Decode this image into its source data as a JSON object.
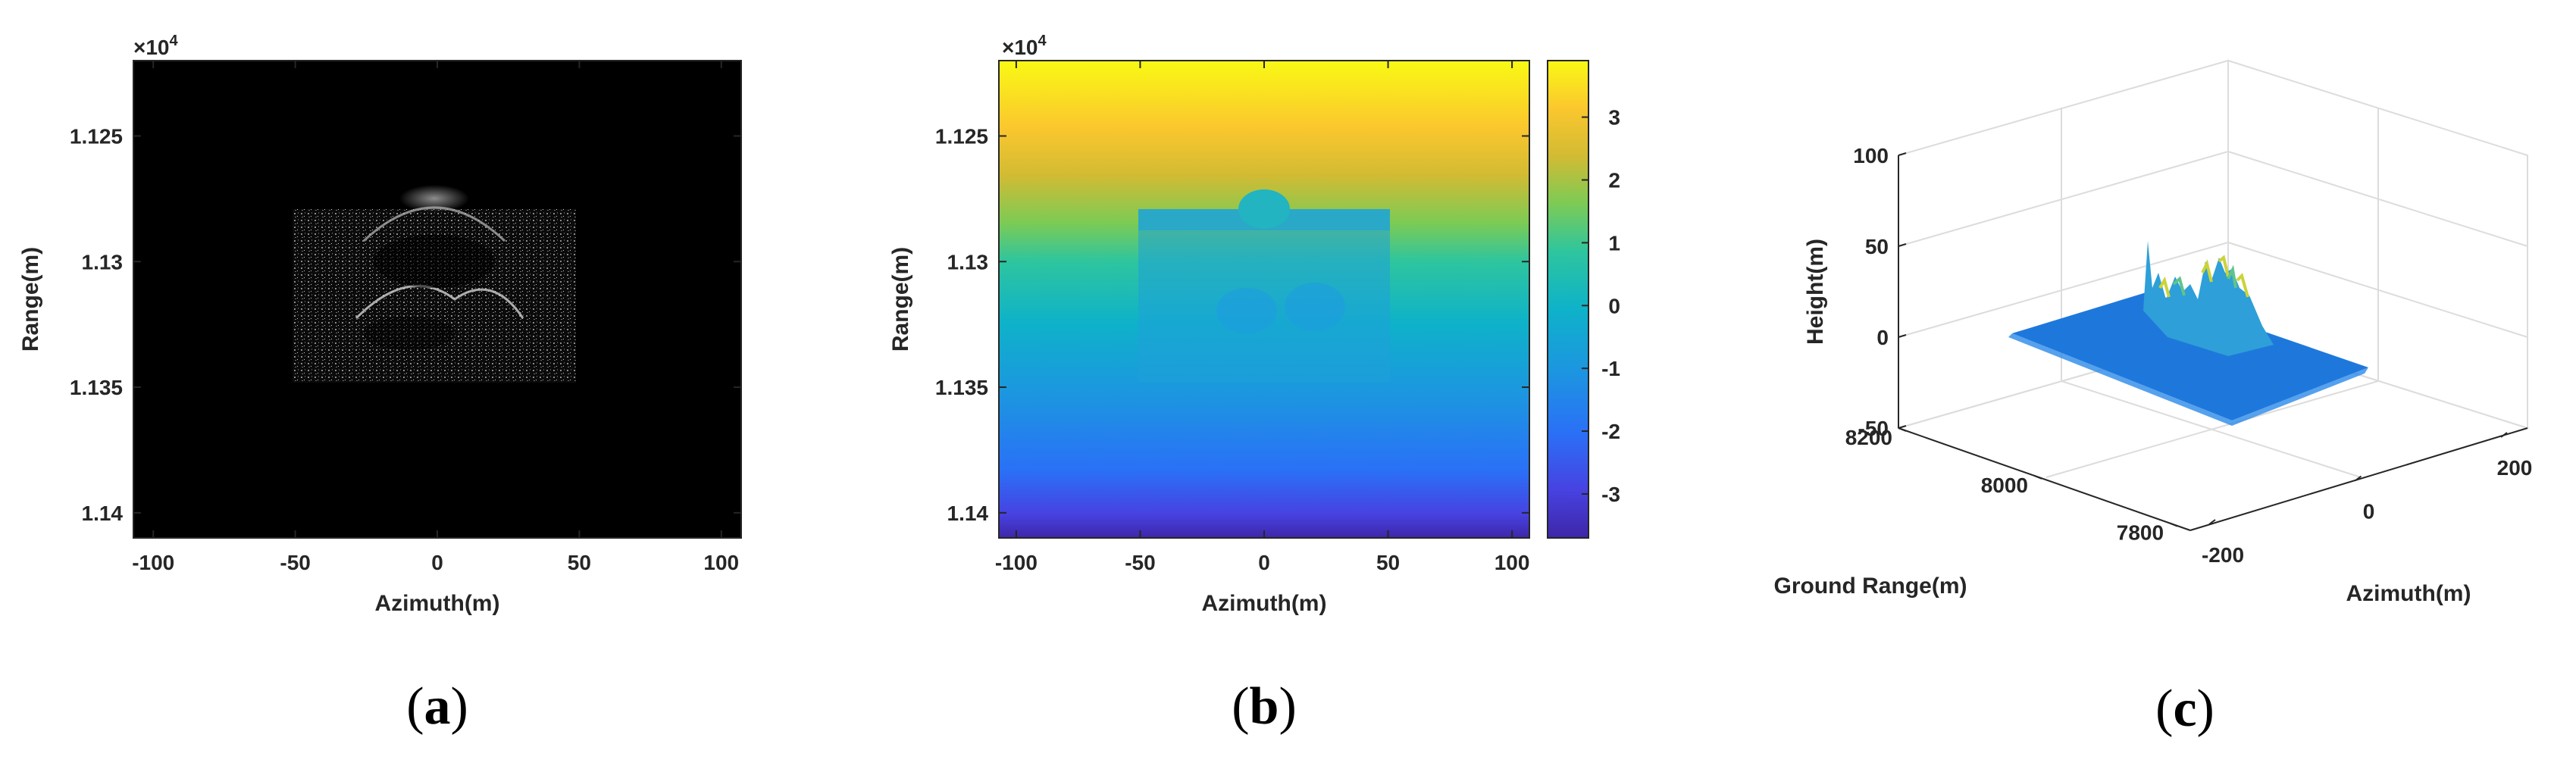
{
  "figure": {
    "panels": [
      {
        "caption": "a",
        "exponent_label": "×10",
        "exponent_power": "4",
        "xlabel": "Azimuth(m)",
        "ylabel": "Range(m)"
      },
      {
        "caption": "b",
        "exponent_label": "×10",
        "exponent_power": "4",
        "xlabel": "Azimuth(m)",
        "ylabel": "Range(m)"
      },
      {
        "caption": "c",
        "xlabel": "Azimuth(m)",
        "ylabel": "Ground Range(m)",
        "zlabel": "Height(m)"
      }
    ]
  },
  "chart_data": [
    {
      "type": "heatmap",
      "title": "",
      "xlabel": "Azimuth(m)",
      "ylabel": "Range(m)",
      "xlim": [
        -107,
        107
      ],
      "ylim": [
        11220,
        11410
      ],
      "xticks": [
        -100,
        -50,
        0,
        50,
        100
      ],
      "xtick_labels": [
        "-100",
        "-50",
        "0",
        "50",
        "100"
      ],
      "yticks": [
        11250,
        11300,
        11350,
        11400
      ],
      "ytick_labels": [
        "1.125",
        "1.13",
        "1.135",
        "1.14"
      ],
      "y_multiplier": "×10^4",
      "colormap": "gray",
      "background": "#000000",
      "grid": false,
      "scene": {
        "x_range": [
          -50,
          50
        ],
        "y_range": [
          11278,
          11347
        ]
      }
    },
    {
      "type": "heatmap",
      "title": "",
      "xlabel": "Azimuth(m)",
      "ylabel": "Range(m)",
      "xlim": [
        -107,
        107
      ],
      "ylim": [
        11220,
        11410
      ],
      "xticks": [
        -100,
        -50,
        0,
        50,
        100
      ],
      "xtick_labels": [
        "-100",
        "-50",
        "0",
        "50",
        "100"
      ],
      "yticks": [
        11250,
        11300,
        11350,
        11400
      ],
      "ytick_labels": [
        "1.125",
        "1.13",
        "1.135",
        "1.14"
      ],
      "y_multiplier": "×10^4",
      "colormap": "parula",
      "colorbar": {
        "limits": [
          -3.7,
          3.9
        ],
        "ticks": [
          3,
          2,
          1,
          0,
          -1,
          -2,
          -3
        ],
        "tick_labels": [
          "3",
          "2",
          "1",
          "0",
          "-1",
          "-2",
          "-3"
        ]
      },
      "grid": false
    },
    {
      "type": "surface3d",
      "title": "",
      "xlabel": "Azimuth(m)",
      "ylabel": "Ground Range(m)",
      "zlabel": "Height(m)",
      "xticks": [
        -200,
        0,
        200
      ],
      "xtick_labels": [
        "-200",
        "0",
        "200"
      ],
      "yticks": [
        7800,
        8000,
        8200
      ],
      "ytick_labels": [
        "7800",
        "8000",
        "8200"
      ],
      "zticks": [
        -50,
        0,
        50,
        100
      ],
      "ztick_labels": [
        "-50",
        "0",
        "50",
        "100"
      ],
      "zlim": [
        -50,
        100
      ],
      "grid": true,
      "colormap": "parula"
    }
  ],
  "colors": {
    "axis": "#262626",
    "grid": "#dcdcdc",
    "surface_base": "#1e78dc"
  }
}
